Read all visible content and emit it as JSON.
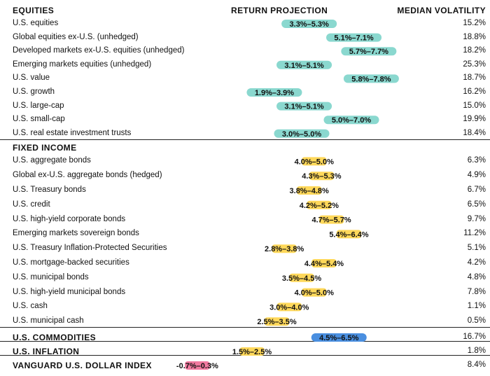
{
  "headers": {
    "category": "EQUITIES",
    "projection": "RETURN PROJECTION",
    "volatility": "MEDIAN VOLATILITY"
  },
  "colors": {
    "equities": "#8ad8cf",
    "fixed_income": "#ffd85a",
    "commodities": "#4a8fe0",
    "inflation": "#ffd85a",
    "dollar": "#f27aa0"
  },
  "chart_data": {
    "type": "bar",
    "title": "",
    "sections": [
      {
        "name": "EQUITIES",
        "style": "equities",
        "rows": [
          {
            "label": "U.S. equities",
            "range": "3.3%–5.3%",
            "low": 3.3,
            "high": 5.3,
            "volatility": "15.2%"
          },
          {
            "label": "Global equities ex-U.S. (unhedged)",
            "range": "5.1%–7.1%",
            "low": 5.1,
            "high": 7.1,
            "volatility": "18.8%"
          },
          {
            "label": "Developed markets ex-U.S. equities (unhedged)",
            "range": "5.7%–7.7%",
            "low": 5.7,
            "high": 7.7,
            "volatility": "18.2%"
          },
          {
            "label": "Emerging markets equities (unhedged)",
            "range": "3.1%–5.1%",
            "low": 3.1,
            "high": 5.1,
            "volatility": "25.3%"
          },
          {
            "label": "U.S. value",
            "range": "5.8%–7.8%",
            "low": 5.8,
            "high": 7.8,
            "volatility": "18.7%"
          },
          {
            "label": "U.S. growth",
            "range": "1.9%–3.9%",
            "low": 1.9,
            "high": 3.9,
            "volatility": "16.2%"
          },
          {
            "label": "U.S. large-cap",
            "range": "3.1%–5.1%",
            "low": 3.1,
            "high": 5.1,
            "volatility": "15.0%"
          },
          {
            "label": "U.S. small-cap",
            "range": "5.0%–7.0%",
            "low": 5.0,
            "high": 7.0,
            "volatility": "19.9%"
          },
          {
            "label": "U.S. real estate investment trusts",
            "range": "3.0%–5.0%",
            "low": 3.0,
            "high": 5.0,
            "volatility": "18.4%"
          }
        ]
      },
      {
        "name": "FIXED INCOME",
        "style": "fixed_income",
        "rows": [
          {
            "label": "U.S. aggregate bonds",
            "range": "4.0%–5.0%",
            "low": 4.0,
            "high": 5.0,
            "volatility": "6.3%"
          },
          {
            "label": "Global ex-U.S. aggregate bonds (hedged)",
            "range": "4.3%–5.3%",
            "low": 4.3,
            "high": 5.3,
            "volatility": "4.9%"
          },
          {
            "label": "U.S. Treasury bonds",
            "range": "3.8%–4.8%",
            "low": 3.8,
            "high": 4.8,
            "volatility": "6.7%"
          },
          {
            "label": "U.S. credit",
            "range": "4.2%–5.2%",
            "low": 4.2,
            "high": 5.2,
            "volatility": "6.5%"
          },
          {
            "label": "U.S. high-yield corporate bonds",
            "range": "4.7%–5.7%",
            "low": 4.7,
            "high": 5.7,
            "volatility": "9.7%"
          },
          {
            "label": "Emerging markets sovereign bonds",
            "range": "5.4%–6.4%",
            "low": 5.4,
            "high": 6.4,
            "volatility": "11.2%"
          },
          {
            "label": "U.S. Treasury Inflation-Protected Securities",
            "range": "2.8%–3.8%",
            "low": 2.8,
            "high": 3.8,
            "volatility": "5.1%"
          },
          {
            "label": "U.S. mortgage-backed securities",
            "range": "4.4%–5.4%",
            "low": 4.4,
            "high": 5.4,
            "volatility": "4.2%"
          },
          {
            "label": "U.S. municipal bonds",
            "range": "3.5%–4.5%",
            "low": 3.5,
            "high": 4.5,
            "volatility": "4.8%"
          },
          {
            "label": "U.S. high-yield municipal bonds",
            "range": "4.0%–5.0%",
            "low": 4.0,
            "high": 5.0,
            "volatility": "7.8%"
          },
          {
            "label": "U.S. cash",
            "range": "3.0%–4.0%",
            "low": 3.0,
            "high": 4.0,
            "volatility": "1.1%"
          },
          {
            "label": "U.S. municipal cash",
            "range": "2.5%–3.5%",
            "low": 2.5,
            "high": 3.5,
            "volatility": "0.5%"
          }
        ]
      },
      {
        "name": "U.S. COMMODITIES",
        "style": "commodities",
        "single": true,
        "rows": [
          {
            "label": "U.S. COMMODITIES",
            "range": "4.5%–6.5%",
            "low": 4.5,
            "high": 6.5,
            "volatility": "16.7%"
          }
        ]
      },
      {
        "name": "U.S. INFLATION",
        "style": "inflation",
        "single": true,
        "rows": [
          {
            "label": "U.S. INFLATION",
            "range": "1.5%–2.5%",
            "low": 1.5,
            "high": 2.5,
            "volatility": "1.8%"
          }
        ]
      },
      {
        "name": "VANGUARD U.S. DOLLAR INDEX",
        "style": "dollar",
        "single": true,
        "rows": [
          {
            "label": "VANGUARD U.S. DOLLAR INDEX",
            "range": "-0.7%–0.3%",
            "low": -0.7,
            "high": 0.3,
            "volatility": "8.4%"
          }
        ]
      }
    ]
  }
}
